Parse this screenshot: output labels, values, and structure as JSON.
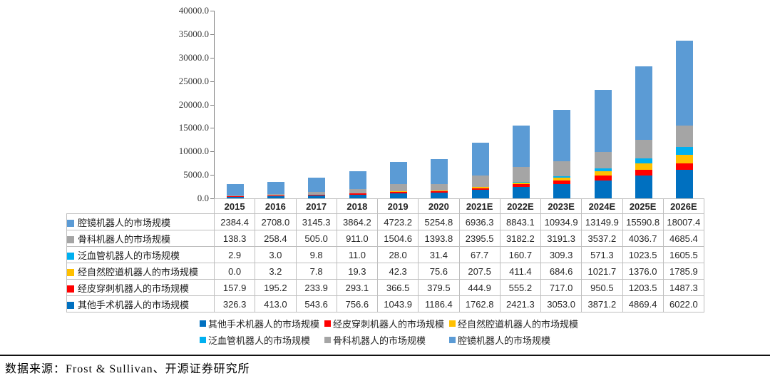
{
  "chart_data": {
    "type": "bar",
    "stacked": true,
    "title": "",
    "xlabel": "",
    "ylabel": "",
    "grid": false,
    "categories": [
      "2015",
      "2016",
      "2017",
      "2018",
      "2019",
      "2020",
      "2021E",
      "2022E",
      "2023E",
      "2024E",
      "2025E",
      "2026E"
    ],
    "series": [
      {
        "name": "腔镜机器人的市场规模",
        "color": "#5B9BD5",
        "values": [
          2384.4,
          2708.0,
          3145.3,
          3864.2,
          4723.2,
          5254.8,
          6936.3,
          8843.1,
          10934.9,
          13149.9,
          15590.8,
          18007.4
        ]
      },
      {
        "name": "骨科机器人的市场规模",
        "color": "#A5A5A5",
        "values": [
          138.3,
          258.4,
          505.0,
          911.0,
          1504.6,
          1393.8,
          2395.5,
          3182.2,
          3191.3,
          3537.2,
          4036.7,
          4685.4
        ]
      },
      {
        "name": "泛血管机器人的市场规模",
        "color": "#00B0F0",
        "values": [
          2.9,
          3.0,
          9.8,
          11.0,
          28.0,
          31.4,
          67.7,
          160.7,
          309.3,
          571.3,
          1023.5,
          1605.5
        ]
      },
      {
        "name": "经自然腔道机器人的市场规模",
        "color": "#FFC000",
        "values": [
          0.0,
          3.2,
          7.8,
          19.3,
          42.3,
          75.6,
          207.5,
          411.4,
          684.6,
          1021.7,
          1376.0,
          1785.9
        ]
      },
      {
        "name": "经皮穿刺机器人的市场规模",
        "color": "#FF0000",
        "values": [
          157.9,
          195.2,
          233.9,
          293.1,
          366.5,
          379.5,
          444.9,
          555.2,
          717.0,
          950.5,
          1203.5,
          1487.3
        ]
      },
      {
        "name": "其他手术机器人的市场规模",
        "color": "#0070C0",
        "values": [
          326.3,
          413.0,
          543.6,
          756.6,
          1043.9,
          1186.4,
          1762.8,
          2421.3,
          3053.0,
          3871.2,
          4869.4,
          6022.0
        ]
      }
    ],
    "stack_order_bottom_to_top": [
      "其他手术机器人的市场规模",
      "经皮穿刺机器人的市场规模",
      "经自然腔道机器人的市场规模",
      "泛血管机器人的市场规模",
      "骨科机器人的市场规模",
      "腔镜机器人的市场规模"
    ],
    "y_axis": {
      "min": 0,
      "max": 40000,
      "step": 5000,
      "tick_labels": [
        "40000.0",
        "35000.0",
        "30000.0",
        "25000.0",
        "20000.0",
        "15000.0",
        "10000.0",
        "5000.0",
        "0.0"
      ]
    },
    "legend_position": "bottom",
    "legend_display_order": [
      "其他手术机器人的市场规模",
      "经皮穿刺机器人的市场规模",
      "经自然腔道机器人的市场规模",
      "泛血管机器人的市场规模",
      "骨科机器人的市场规模",
      "腔镜机器人的市场规模"
    ]
  },
  "footer": {
    "source_text": "数据来源：Frost & Sullivan、开源证券研究所"
  }
}
